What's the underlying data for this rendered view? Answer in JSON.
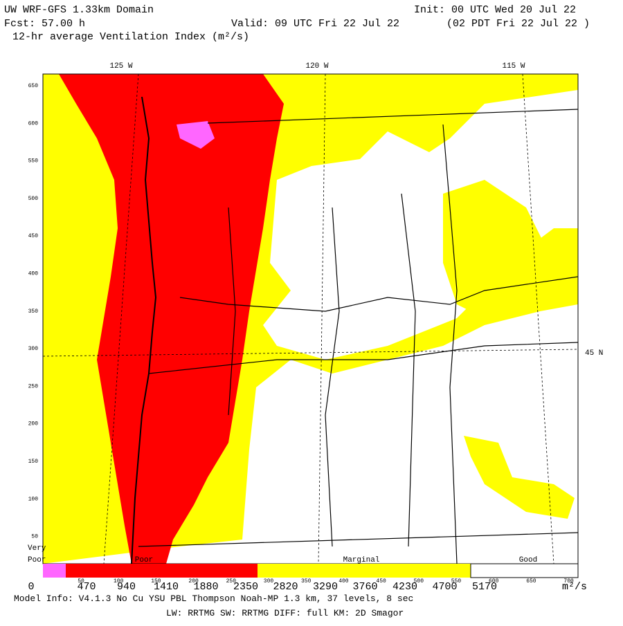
{
  "header": {
    "title": "UW WRF-GFS 1.33km Domain",
    "init": "Init: 00 UTC Wed 20 Jul 22",
    "fcst": "Fcst:   57.00 h",
    "valid": "Valid: 09 UTC Fri 22 Jul 22",
    "local_time": "(02 PDT Fri 22 Jul 22  )",
    "field": "12-hr average Ventilation Index (m²/s)"
  },
  "map": {
    "lon_labels": [
      "125 W",
      "120 W",
      "115 W"
    ],
    "lat_label": "45 N",
    "grid_labels": [
      "650",
      "600",
      "550",
      "500",
      "450",
      "400",
      "350",
      "300",
      "250",
      "200",
      "150",
      "100",
      "50"
    ]
  },
  "legend": {
    "classes": [
      "Very",
      "Poor",
      "Poor",
      "Marginal",
      "Good"
    ],
    "bar_labels": [
      "50",
      "100",
      "150",
      "200",
      "250",
      "300",
      "350",
      "400",
      "450",
      "500",
      "550",
      "600",
      "650",
      "700"
    ],
    "scale_labels": [
      "0",
      "470",
      "940",
      "1410",
      "1880",
      "2350",
      "2820",
      "3290",
      "3760",
      "4230",
      "4700",
      "5170"
    ],
    "unit": "m²/s"
  },
  "footer": {
    "line1": "Model Info: V4.1.3    No Cu    YSU PBL  Thompson     Noah-MP    1.3 km,   37 levels,     8 sec",
    "line2": "LW: RRTMG  SW: RRTMG    DIFF: full    KM: 2D Smagor"
  }
}
